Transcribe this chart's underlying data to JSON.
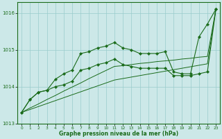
{
  "x": [
    0,
    1,
    2,
    3,
    4,
    5,
    6,
    7,
    8,
    9,
    10,
    11,
    12,
    13,
    14,
    15,
    16,
    17,
    18,
    19,
    20,
    21,
    22,
    23
  ],
  "series1": [
    1013.3,
    1013.65,
    1013.85,
    1013.9,
    1014.2,
    1014.35,
    1014.45,
    1014.9,
    1014.95,
    1015.05,
    1015.1,
    1015.2,
    1015.05,
    1015.0,
    1014.9,
    1014.9,
    1014.9,
    1014.95,
    1014.4,
    1014.35,
    1014.35,
    1015.35,
    1015.7,
    1016.1
  ],
  "series2": [
    1013.3,
    1013.65,
    1013.85,
    1013.9,
    1014.0,
    1014.05,
    1014.15,
    1014.45,
    1014.5,
    1014.6,
    1014.65,
    1014.75,
    1014.6,
    1014.55,
    1014.5,
    1014.5,
    1014.5,
    1014.5,
    1014.3,
    1014.3,
    1014.3,
    1014.35,
    1014.4,
    1016.1
  ],
  "series3": [
    1013.3,
    1013.42,
    1013.53,
    1013.65,
    1013.76,
    1013.88,
    1013.99,
    1014.1,
    1014.22,
    1014.33,
    1014.44,
    1014.55,
    1014.57,
    1014.6,
    1014.63,
    1014.65,
    1014.68,
    1014.7,
    1014.72,
    1014.75,
    1014.77,
    1014.8,
    1014.82,
    1016.1
  ],
  "series4": [
    1013.3,
    1013.38,
    1013.46,
    1013.54,
    1013.62,
    1013.7,
    1013.78,
    1013.86,
    1013.94,
    1014.02,
    1014.1,
    1014.18,
    1014.22,
    1014.26,
    1014.3,
    1014.34,
    1014.38,
    1014.42,
    1014.46,
    1014.5,
    1014.54,
    1014.58,
    1014.62,
    1016.1
  ],
  "line_color": "#1a6b1a",
  "marker_color": "#1a6b1a",
  "bg_color": "#cce8e8",
  "grid_color": "#99cccc",
  "axis_color": "#1a6b1a",
  "xlabel": "Graphe pression niveau de la mer (hPa)",
  "ylim_min": 1013.0,
  "ylim_max": 1016.3,
  "yticks": [
    1013,
    1014,
    1015,
    1016
  ],
  "xticks": [
    0,
    1,
    2,
    3,
    4,
    5,
    6,
    7,
    8,
    9,
    10,
    11,
    12,
    13,
    14,
    15,
    16,
    17,
    18,
    19,
    20,
    21,
    22,
    23
  ]
}
